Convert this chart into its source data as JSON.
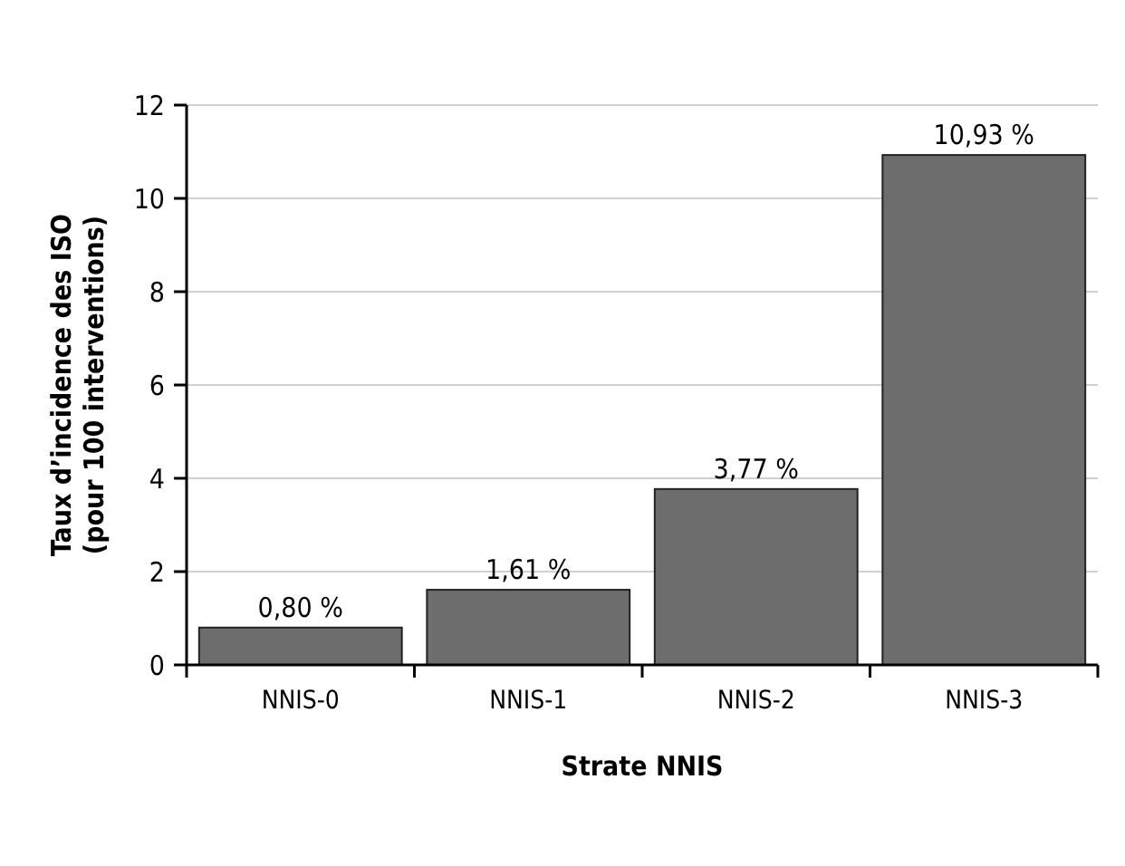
{
  "chart_data": {
    "type": "bar",
    "xlabel": "Strate NNIS",
    "ylabel": "Taux d’incidence des ISO\n(pour 100 interventions)",
    "categories": [
      "NNIS-0",
      "NNIS-1",
      "NNIS-2",
      "NNIS-3"
    ],
    "values": [
      0.8,
      1.61,
      3.77,
      10.93
    ],
    "value_labels": [
      "0,80 %",
      "1,61 %",
      "3,77 %",
      "10,93 %"
    ],
    "color": "#6d6d6d",
    "ylim": [
      0,
      12
    ],
    "yticks": [
      0,
      2,
      4,
      6,
      8,
      10,
      12
    ],
    "grid": "y"
  }
}
